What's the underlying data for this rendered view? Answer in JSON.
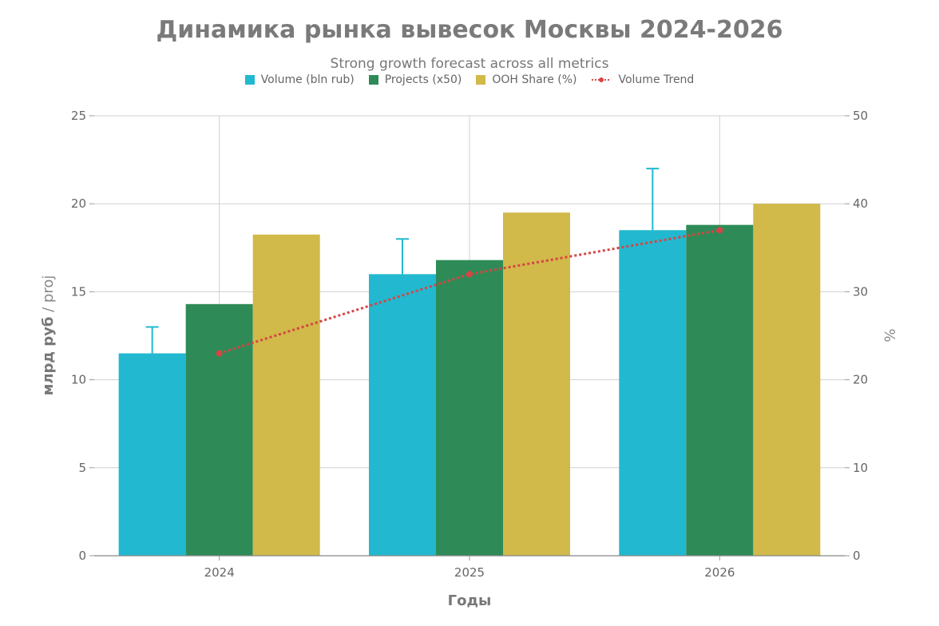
{
  "chart_data": {
    "type": "bar",
    "title": "Динамика рынка вывесок Москвы 2024-2026",
    "subtitle": "Strong growth forecast across all metrics",
    "xlabel": "Годы",
    "ylabel_bold": "млрд руб",
    "ylabel_light": " / proj",
    "y2label": "%",
    "categories": [
      "2024",
      "2025",
      "2026"
    ],
    "ylim": [
      0,
      25
    ],
    "y2lim": [
      0,
      50
    ],
    "yticks": [
      "0",
      "5",
      "10",
      "15",
      "20",
      "25"
    ],
    "y2ticks": [
      "0",
      "10",
      "20",
      "30",
      "40",
      "50"
    ],
    "grid": true,
    "legend_position": "top-center",
    "series": [
      {
        "name": "Volume (bln rub)",
        "values": [
          11.5,
          16.0,
          18.5
        ],
        "error_upper": [
          13.0,
          18.0,
          22.0
        ],
        "color": "#22b8cf",
        "axis": "left"
      },
      {
        "name": "Projects (x50)",
        "values": [
          14.3,
          16.8,
          18.8
        ],
        "color": "#2e8b57",
        "axis": "left"
      },
      {
        "name": "OOH Share (%)",
        "values": [
          36.5,
          39.0,
          40.0
        ],
        "color": "#d1b94a",
        "axis": "right"
      }
    ],
    "trend": {
      "name": "Volume Trend",
      "values": [
        11.5,
        16.0,
        18.5
      ],
      "color": "#d64545",
      "axis": "left"
    }
  }
}
